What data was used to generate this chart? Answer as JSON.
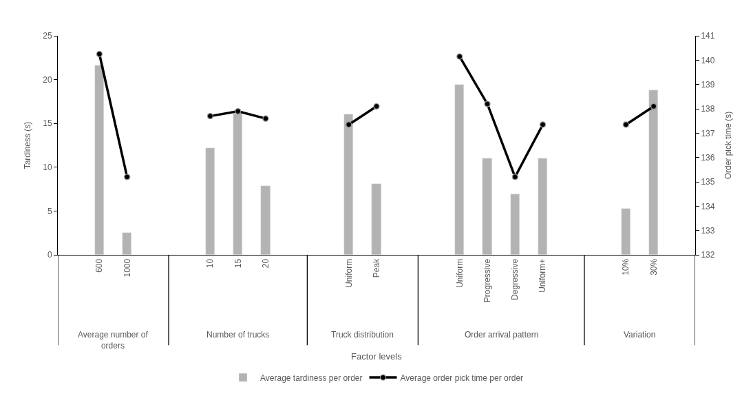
{
  "chart_data": {
    "type": "bar",
    "ylabel": "Tardiness (s)",
    "y2label": "Order pick time (s)",
    "annotations": [
      "Average number of orders",
      "Number of trucks",
      "Truck distribution",
      "Order arrival pattern",
      "Variation",
      "Factor levels"
    ],
    "categories": [
      null,
      "600",
      "1000",
      null,
      null,
      "10",
      "15",
      "20",
      null,
      null,
      "Uniform",
      "Peak",
      null,
      null,
      "Uniform",
      "Progressive",
      "Degressive",
      "Uniform+",
      null,
      null,
      "10%",
      "30%",
      null
    ],
    "series": [
      {
        "name": "Average tardiness per order",
        "color": "#b3b3b3",
        "values": [
          null,
          21.6,
          2.5,
          null,
          null,
          12.2,
          16.1,
          7.9,
          null,
          null,
          16.0,
          8.1,
          null,
          null,
          19.4,
          11.0,
          6.9,
          11.0,
          null,
          null,
          5.3,
          18.8,
          null
        ]
      },
      {
        "name": "Average order pick time per order",
        "type": "line",
        "axis": "y2",
        "color": "#000000",
        "marker": "circle",
        "values": [
          null,
          140.25,
          135.2,
          null,
          null,
          137.7,
          137.9,
          137.6,
          null,
          null,
          137.35,
          138.1,
          null,
          null,
          140.15,
          138.2,
          135.2,
          137.35,
          null,
          null,
          137.35,
          138.1,
          null
        ]
      }
    ],
    "ylim": [
      0,
      25
    ],
    "yticks": [
      0,
      5,
      10,
      15,
      20,
      25
    ],
    "y2lim": [
      132,
      141
    ],
    "y2ticks": [
      132,
      133,
      134,
      135,
      136,
      137,
      138,
      139,
      140,
      141
    ],
    "legend": "bottom"
  }
}
